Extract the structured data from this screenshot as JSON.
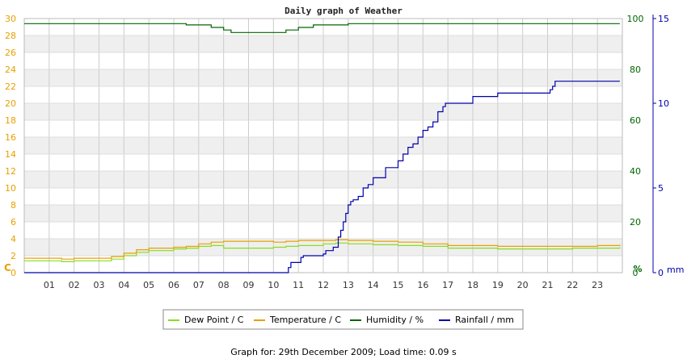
{
  "chart_data": {
    "type": "line",
    "title": "Daily graph of Weather",
    "footer": "Graph for: 29th December 2009; Load time: 0.09 s",
    "axes": {
      "x": {
        "range": [
          0,
          24
        ],
        "ticks": [
          "01",
          "02",
          "03",
          "04",
          "05",
          "06",
          "07",
          "08",
          "09",
          "10",
          "11",
          "12",
          "13",
          "14",
          "15",
          "16",
          "17",
          "18",
          "19",
          "20",
          "21",
          "22",
          "23"
        ]
      },
      "y_temp": {
        "unit_label": "C",
        "range": [
          0,
          30
        ],
        "ticks": [
          0,
          2,
          4,
          6,
          8,
          10,
          12,
          14,
          16,
          18,
          20,
          22,
          24,
          26,
          28,
          30
        ],
        "color": "#e8a000"
      },
      "y_humidity": {
        "unit_label": "%",
        "range": [
          0,
          100
        ],
        "ticks": [
          0,
          20,
          40,
          60,
          80,
          100
        ],
        "color": "#006600"
      },
      "y_rain": {
        "unit_label": "mm",
        "range": [
          0,
          15
        ],
        "ticks": [
          0,
          5,
          10,
          15
        ],
        "color": "#0000aa"
      }
    },
    "grid": true,
    "legend_position": "bottom",
    "series": [
      {
        "name": "Dew Point / C",
        "color": "#88dd22",
        "axis": "y_temp",
        "x": [
          0,
          1,
          1.5,
          2,
          3,
          3.5,
          4,
          4.5,
          5,
          6,
          6.5,
          7,
          7.5,
          8,
          9,
          10,
          10.5,
          11,
          12,
          12.5,
          13,
          14,
          15,
          16,
          17,
          18,
          19,
          20,
          21,
          22,
          23,
          23.9
        ],
        "values": [
          1.4,
          1.4,
          1.3,
          1.4,
          1.4,
          1.6,
          2.0,
          2.4,
          2.6,
          2.8,
          2.9,
          3.1,
          3.2,
          2.9,
          2.9,
          3.0,
          3.1,
          3.2,
          3.4,
          3.5,
          3.4,
          3.3,
          3.2,
          3.1,
          2.9,
          2.9,
          2.8,
          2.8,
          2.8,
          2.9,
          2.9,
          3.0
        ]
      },
      {
        "name": "Temperature / C",
        "color": "#e8a000",
        "axis": "y_temp",
        "x": [
          0,
          1,
          1.5,
          2,
          3,
          3.5,
          4,
          4.5,
          5,
          6,
          6.5,
          7,
          7.5,
          8,
          9,
          10,
          10.5,
          11,
          12,
          12.5,
          13,
          14,
          15,
          16,
          17,
          18,
          19,
          20,
          21,
          22,
          23,
          23.9
        ],
        "values": [
          1.7,
          1.7,
          1.6,
          1.7,
          1.7,
          1.9,
          2.3,
          2.7,
          2.9,
          3.0,
          3.1,
          3.4,
          3.6,
          3.7,
          3.7,
          3.6,
          3.7,
          3.8,
          3.8,
          3.9,
          3.8,
          3.7,
          3.6,
          3.4,
          3.2,
          3.2,
          3.1,
          3.1,
          3.1,
          3.1,
          3.2,
          3.3
        ]
      },
      {
        "name": "Humidity / %",
        "color": "#006600",
        "axis": "y_humidity",
        "x": [
          0,
          6,
          6.5,
          7.5,
          8,
          8.3,
          9,
          10,
          10.5,
          11,
          11.6,
          12.8,
          13,
          23.9
        ],
        "values": [
          98,
          98,
          97.5,
          96.5,
          95.5,
          94.5,
          94.5,
          94.5,
          95.5,
          96.5,
          97.5,
          97.5,
          98,
          98
        ]
      },
      {
        "name": "Rainfall / mm",
        "color": "#0000aa",
        "axis": "y_rain",
        "x": [
          0,
          10,
          10.6,
          10.7,
          11.1,
          11.2,
          12,
          12.1,
          12.4,
          12.6,
          12.7,
          12.8,
          12.9,
          13.0,
          13.1,
          13.2,
          13.4,
          13.6,
          13.8,
          14.0,
          14.2,
          14.5,
          14.7,
          15.0,
          15.2,
          15.4,
          15.6,
          15.8,
          16.0,
          16.2,
          16.4,
          16.6,
          16.8,
          16.9,
          17.0,
          17.3,
          17.8,
          18.0,
          18.2,
          18.6,
          19.0,
          19.2,
          19.6,
          20.0,
          20.4,
          20.8,
          21.0,
          21.1,
          21.2,
          21.3,
          21.5,
          22.0,
          23.0,
          23.9
        ],
        "values": [
          0,
          0,
          0.3,
          0.6,
          0.9,
          1.0,
          1.1,
          1.3,
          1.5,
          2.1,
          2.5,
          3.0,
          3.5,
          4.0,
          4.2,
          4.3,
          4.5,
          5.0,
          5.2,
          5.6,
          5.6,
          6.2,
          6.2,
          6.6,
          7.0,
          7.4,
          7.6,
          8.0,
          8.4,
          8.6,
          8.9,
          9.5,
          9.8,
          10.0,
          10.0,
          10.0,
          10.0,
          10.4,
          10.4,
          10.4,
          10.6,
          10.6,
          10.6,
          10.6,
          10.6,
          10.6,
          10.6,
          10.8,
          11.0,
          11.3,
          11.3,
          11.3,
          11.3,
          11.3
        ]
      }
    ]
  }
}
